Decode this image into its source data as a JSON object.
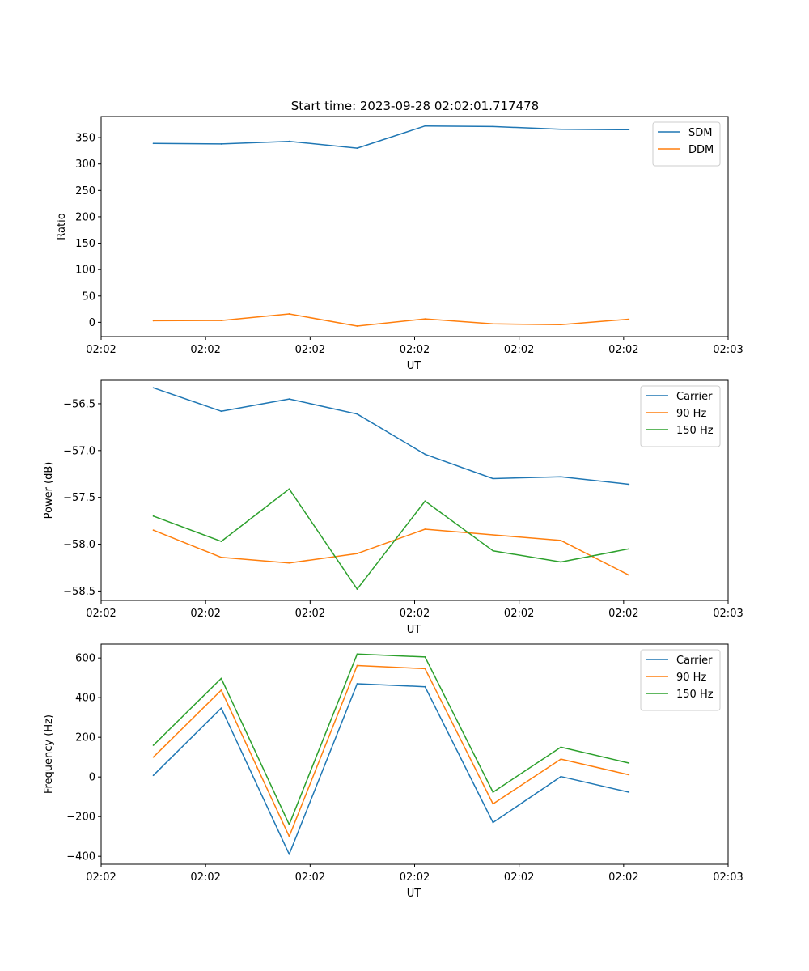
{
  "figure_title": "Start time: 2023-09-28 02:02:01.717478",
  "colors": {
    "blue": "#1f77b4",
    "orange": "#ff7f0e",
    "green": "#2ca02c",
    "axis": "#000000"
  },
  "chart_data": [
    {
      "type": "line",
      "xlabel": "UT",
      "ylabel": "Ratio",
      "xlim": [
        0,
        12
      ],
      "ylim": [
        -27,
        390
      ],
      "x_ticks": [
        0,
        2,
        4,
        6,
        8,
        10,
        12
      ],
      "x_tick_labels": [
        "02:02",
        "02:02",
        "02:02",
        "02:02",
        "02:02",
        "02:02",
        "02:03"
      ],
      "y_ticks": [
        0,
        50,
        100,
        150,
        200,
        250,
        300,
        350
      ],
      "y_tick_labels": [
        "0",
        "50",
        "100",
        "150",
        "200",
        "250",
        "300",
        "350"
      ],
      "legend_position": "top-right",
      "x": [
        1,
        2.3,
        3.6,
        4.9,
        6.2,
        7.5,
        8.8,
        10.1
      ],
      "series": [
        {
          "name": "SDM",
          "color": "#1f77b4",
          "values": [
            339,
            338,
            343,
            330,
            372,
            371,
            366,
            365
          ]
        },
        {
          "name": "DDM",
          "color": "#ff7f0e",
          "values": [
            3,
            3.5,
            16,
            -7,
            6.5,
            -3,
            -4.5,
            6
          ]
        }
      ]
    },
    {
      "type": "line",
      "xlabel": "UT",
      "ylabel": "Power (dB)",
      "xlim": [
        0,
        12
      ],
      "ylim": [
        -58.6,
        -56.25
      ],
      "x_ticks": [
        0,
        2,
        4,
        6,
        8,
        10,
        12
      ],
      "x_tick_labels": [
        "02:02",
        "02:02",
        "02:02",
        "02:02",
        "02:02",
        "02:02",
        "02:03"
      ],
      "y_ticks": [
        -58.5,
        -58.0,
        -57.5,
        -57.0,
        -56.5
      ],
      "y_tick_labels": [
        "−58.5",
        "−58.0",
        "−57.5",
        "−57.0",
        "−56.5"
      ],
      "legend_position": "top-right",
      "x": [
        1,
        2.3,
        3.6,
        4.9,
        6.2,
        7.5,
        8.8,
        10.1
      ],
      "series": [
        {
          "name": "Carrier",
          "color": "#1f77b4",
          "values": [
            -56.33,
            -56.58,
            -56.45,
            -56.61,
            -57.04,
            -57.3,
            -57.28,
            -57.36
          ]
        },
        {
          "name": "90 Hz",
          "color": "#ff7f0e",
          "values": [
            -57.85,
            -58.14,
            -58.2,
            -58.1,
            -57.84,
            -57.9,
            -57.96,
            -58.33
          ]
        },
        {
          "name": "150 Hz",
          "color": "#2ca02c",
          "values": [
            -57.7,
            -57.97,
            -57.41,
            -58.48,
            -57.54,
            -58.07,
            -58.19,
            -58.05
          ]
        }
      ]
    },
    {
      "type": "line",
      "xlabel": "UT",
      "ylabel": "Frequency (Hz)",
      "xlim": [
        0,
        12
      ],
      "ylim": [
        -440,
        670
      ],
      "x_ticks": [
        0,
        2,
        4,
        6,
        8,
        10,
        12
      ],
      "x_tick_labels": [
        "02:02",
        "02:02",
        "02:02",
        "02:02",
        "02:02",
        "02:02",
        "02:03"
      ],
      "y_ticks": [
        -400,
        -200,
        0,
        200,
        400,
        600
      ],
      "y_tick_labels": [
        "−400",
        "−200",
        "0",
        "200",
        "400",
        "600"
      ],
      "legend_position": "top-right",
      "x": [
        1,
        2.3,
        3.6,
        4.9,
        6.2,
        7.5,
        8.8,
        10.1
      ],
      "series": [
        {
          "name": "Carrier",
          "color": "#1f77b4",
          "values": [
            8,
            347,
            -390,
            470,
            455,
            -230,
            2,
            -77
          ]
        },
        {
          "name": "90 Hz",
          "color": "#ff7f0e",
          "values": [
            100,
            438,
            -300,
            562,
            546,
            -136,
            90,
            11
          ]
        },
        {
          "name": "150 Hz",
          "color": "#2ca02c",
          "values": [
            160,
            497,
            -240,
            620,
            605,
            -77,
            150,
            70
          ]
        }
      ]
    }
  ]
}
